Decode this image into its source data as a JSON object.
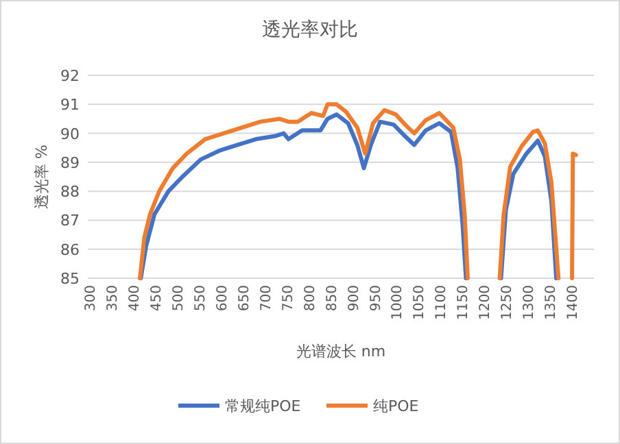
{
  "chart_data": {
    "type": "line",
    "title": "透光率对比",
    "xlabel": "光谱波长 nm",
    "ylabel": "透光率 %",
    "xlim": [
      295,
      1450
    ],
    "ylim": [
      85,
      92
    ],
    "xticks": [
      300,
      350,
      400,
      450,
      500,
      550,
      600,
      650,
      700,
      750,
      800,
      850,
      900,
      950,
      1000,
      1050,
      1100,
      1150,
      1200,
      1250,
      1300,
      1350,
      1400
    ],
    "yticks": [
      85,
      86,
      87,
      88,
      89,
      90,
      91,
      92
    ],
    "grid": "y",
    "legend": "bottom",
    "marker": "none",
    "line_style": "solid",
    "series": [
      {
        "name": "常规纯POE",
        "color": "#4472c4",
        "x": [
          416,
          428,
          447,
          479,
          511,
          553,
          595,
          637,
          679,
          721,
          742,
          753,
          784,
          826,
          842,
          863,
          889,
          910,
          925,
          941,
          962,
          993,
          1019,
          1040,
          1066,
          1097,
          1124,
          1139,
          1150,
          1158
        ],
        "values": [
          85,
          86.1,
          87.2,
          88.0,
          88.5,
          89.1,
          89.4,
          89.6,
          89.8,
          89.9,
          90.0,
          89.8,
          90.1,
          90.1,
          90.5,
          90.65,
          90.35,
          89.6,
          88.8,
          89.6,
          90.4,
          90.3,
          89.9,
          89.6,
          90.1,
          90.35,
          90.05,
          88.8,
          86.9,
          85
        ]
      },
      {
        "name": "纯POE",
        "color": "#ed7d31",
        "x": [
          414,
          424,
          437,
          458,
          489,
          521,
          563,
          605,
          647,
          689,
          732,
          753,
          774,
          805,
          832,
          842,
          863,
          884,
          910,
          928,
          946,
          972,
          998,
          1019,
          1040,
          1066,
          1097,
          1129,
          1144,
          1155,
          1162
        ],
        "values": [
          85,
          86.4,
          87.2,
          88.0,
          88.8,
          89.3,
          89.8,
          90.0,
          90.2,
          90.4,
          90.5,
          90.4,
          90.4,
          90.7,
          90.6,
          91.0,
          91.0,
          90.75,
          90.2,
          89.3,
          90.35,
          90.8,
          90.65,
          90.3,
          90.0,
          90.45,
          90.7,
          90.2,
          89.1,
          87.2,
          85
        ]
      },
      {
        "color": "#4472c4",
        "x": [
          1238,
          1249,
          1266,
          1296,
          1322,
          1338,
          1353,
          1364
        ],
        "values": [
          85,
          87.35,
          88.6,
          89.3,
          89.75,
          89.2,
          87.65,
          85
        ]
      },
      {
        "color": "#ed7d31",
        "x": [
          1235,
          1244,
          1259,
          1285,
          1311,
          1322,
          1338,
          1353,
          1369
        ],
        "values": [
          85,
          87.2,
          88.85,
          89.55,
          90.05,
          90.1,
          89.65,
          88.3,
          85
        ]
      },
      {
        "color": "#ed7d31",
        "x": [
          1400,
          1402,
          1409
        ],
        "values": [
          85,
          89.3,
          89.25
        ]
      }
    ]
  }
}
